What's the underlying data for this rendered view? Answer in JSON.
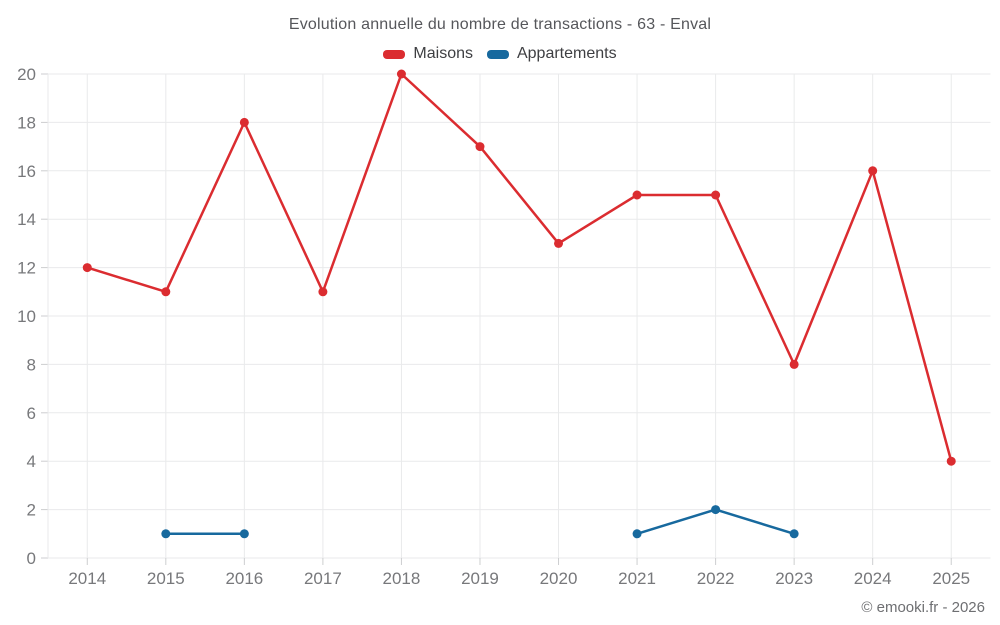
{
  "header": {
    "title": "Evolution annuelle du nombre de transactions - 63 - Enval"
  },
  "footer": {
    "copyright": "© emooki.fr - 2026"
  },
  "colors": {
    "maisons": "#db2c30",
    "appartements": "#17699e",
    "grid": "#e9eaeb",
    "tick": "#cdced0",
    "axis_label": "#77787b"
  },
  "chart_data": {
    "type": "line",
    "title": "Evolution annuelle du nombre de transactions - 63 - Enval",
    "categories": [
      "2014",
      "2015",
      "2016",
      "2017",
      "2018",
      "2019",
      "2020",
      "2021",
      "2022",
      "2023",
      "2024",
      "2025"
    ],
    "series": [
      {
        "name": "Maisons",
        "color": "#db2c30",
        "values": [
          12,
          11,
          18,
          11,
          20,
          17,
          13,
          15,
          15,
          8,
          16,
          4
        ]
      },
      {
        "name": "Appartements",
        "color": "#17699e",
        "values": [
          null,
          1,
          1,
          null,
          null,
          null,
          null,
          1,
          2,
          1,
          null,
          null
        ]
      }
    ],
    "xlabel": "",
    "ylabel": "",
    "ylim": [
      0,
      20
    ],
    "ytick_step": 2,
    "grid": true,
    "legend_position": "top"
  }
}
